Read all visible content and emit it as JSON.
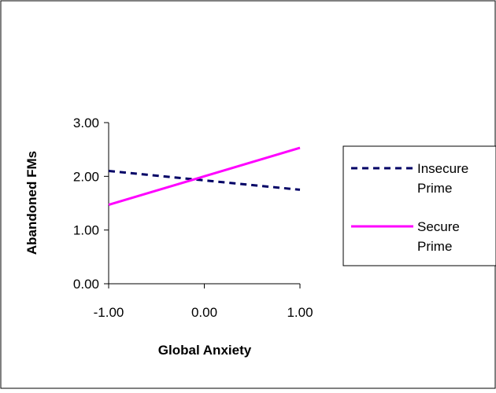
{
  "chart_data": {
    "type": "line",
    "title": "",
    "xlabel": "Global Anxiety",
    "ylabel": "Abandoned FMs",
    "xlim": [
      -1.0,
      1.0
    ],
    "ylim": [
      0.0,
      3.0
    ],
    "x_ticks": [
      -1.0,
      0.0,
      1.0
    ],
    "y_ticks": [
      0.0,
      1.0,
      2.0,
      3.0
    ],
    "x_tick_labels": [
      "-1.00",
      "0.00",
      "1.00"
    ],
    "y_tick_labels": [
      "0.00",
      "1.00",
      "2.00",
      "3.00"
    ],
    "grid": false,
    "legend_position": "right",
    "series": [
      {
        "name": "Insecure Prime",
        "legend_lines": [
          "Insecure",
          "Prime"
        ],
        "color": "#000066",
        "style": "dashed",
        "x": [
          -1.0,
          1.0
        ],
        "values": [
          2.1,
          1.75
        ]
      },
      {
        "name": "Secure Prime",
        "legend_lines": [
          "Secure",
          "Prime"
        ],
        "color": "#FF00FF",
        "style": "solid",
        "x": [
          -1.0,
          1.0
        ],
        "values": [
          1.47,
          2.53
        ]
      }
    ]
  }
}
